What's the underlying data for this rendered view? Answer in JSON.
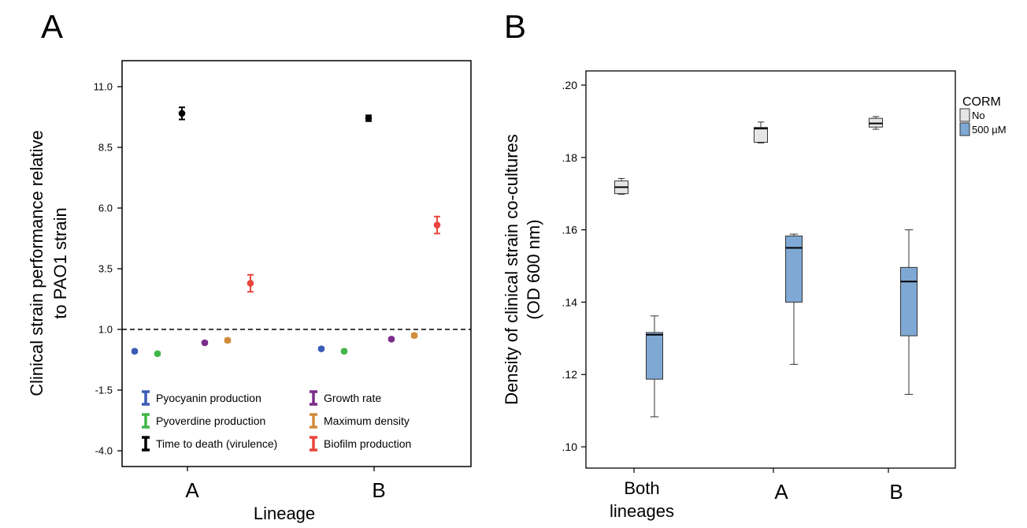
{
  "chart_data": [
    {
      "panel": "A",
      "type": "scatter",
      "ylabel": "Clinical strain performance relative to PAO1 strain",
      "ylabel_lines": [
        "Clinical strain performance relative",
        "to PAO1 strain"
      ],
      "xlabel": "Lineage",
      "categories": [
        "A",
        "B"
      ],
      "yticks": [
        11.0,
        8.5,
        6.0,
        3.5,
        1.0,
        -1.5,
        -4.0
      ],
      "ytick_labels": [
        "11.0",
        "8.5",
        "6.0",
        "3.5",
        "1.0",
        "-1.5",
        "-4.0"
      ],
      "ylim": [
        -4.8,
        11.8
      ],
      "reference_line": 1.0,
      "series": [
        {
          "name": "Pyocyanin production",
          "color": "#3b5bb5",
          "points": [
            {
              "category": "A",
              "y": 0.1,
              "err": 0.05
            },
            {
              "category": "B",
              "y": 0.2,
              "err": 0.05
            }
          ]
        },
        {
          "name": "Pyoverdine production",
          "color": "#43b649",
          "points": [
            {
              "category": "A",
              "y": 0.0,
              "err": 0.05
            },
            {
              "category": "B",
              "y": 0.1,
              "err": 0.05
            }
          ]
        },
        {
          "name": "Time to death (virulence)",
          "color": "#000000",
          "points": [
            {
              "category": "A",
              "y": 9.9,
              "err": 0.25
            },
            {
              "category": "B",
              "y": 9.7,
              "err": 0.12
            }
          ]
        },
        {
          "name": "Growth rate",
          "color": "#7b2d8b",
          "points": [
            {
              "category": "A",
              "y": 0.45,
              "err": 0.05
            },
            {
              "category": "B",
              "y": 0.6,
              "err": 0.05
            }
          ]
        },
        {
          "name": "Maximum density",
          "color": "#d18b3c",
          "points": [
            {
              "category": "A",
              "y": 0.55,
              "err": 0.07
            },
            {
              "category": "B",
              "y": 0.75,
              "err": 0.07
            }
          ]
        },
        {
          "name": "Biofilm production",
          "color": "#e8453c",
          "points": [
            {
              "category": "A",
              "y": 2.9,
              "err": 0.35
            },
            {
              "category": "B",
              "y": 5.3,
              "err": 0.35
            }
          ]
        }
      ],
      "legend": [
        {
          "label": "Pyocyanin production",
          "color": "#3b5bb5"
        },
        {
          "label": "Growth rate",
          "color": "#7b2d8b"
        },
        {
          "label": "Pyoverdine production",
          "color": "#43b649"
        },
        {
          "label": "Maximum density",
          "color": "#d18b3c"
        },
        {
          "label": "Time to death (virulence)",
          "color": "#000000"
        },
        {
          "label": "Biofilm production",
          "color": "#e8453c"
        }
      ],
      "legend_position": "bottom"
    },
    {
      "panel": "B",
      "type": "boxplot",
      "ylabel": "Density of clinical strain co-cultures (OD 600 nm)",
      "ylabel_lines": [
        "Density of clinical strain co-cultures",
        "(OD 600 nm)"
      ],
      "categories": [
        [
          "Both",
          "lineages"
        ],
        [
          "A"
        ],
        [
          "B"
        ]
      ],
      "yticks": [
        0.2,
        0.18,
        0.16,
        0.14,
        0.12,
        0.1
      ],
      "ytick_labels": [
        ".20",
        ".18",
        ".16",
        ".14",
        ".12",
        ".10"
      ],
      "ylim": [
        0.0945,
        0.2065
      ],
      "legend_title": "CORM",
      "legend": [
        {
          "label": "No",
          "color": "#e6e6e6"
        },
        {
          "label": "500 µM",
          "color": "#7fa8d4"
        }
      ],
      "legend_position": "right",
      "series": [
        {
          "name": "No",
          "color": "#e6e6e6",
          "boxes": [
            {
              "category": "Both lineages",
              "min": 0.1698,
              "q1": 0.17,
              "median": 0.1718,
              "q3": 0.1735,
              "max": 0.1742
            },
            {
              "category": "A",
              "min": 0.184,
              "q1": 0.1842,
              "median": 0.188,
              "q3": 0.1883,
              "max": 0.1898
            },
            {
              "category": "B",
              "min": 0.1878,
              "q1": 0.1884,
              "median": 0.1894,
              "q3": 0.1908,
              "max": 0.1913
            }
          ]
        },
        {
          "name": "500 µM",
          "color": "#7fa8d4",
          "boxes": [
            {
              "category": "Both lineages",
              "min": 0.1083,
              "q1": 0.1187,
              "median": 0.131,
              "q3": 0.1316,
              "max": 0.1362
            },
            {
              "category": "A",
              "min": 0.1228,
              "q1": 0.14,
              "median": 0.155,
              "q3": 0.1583,
              "max": 0.1588
            },
            {
              "category": "B",
              "min": 0.1145,
              "q1": 0.1307,
              "median": 0.1457,
              "q3": 0.1496,
              "max": 0.16
            }
          ]
        }
      ]
    }
  ]
}
